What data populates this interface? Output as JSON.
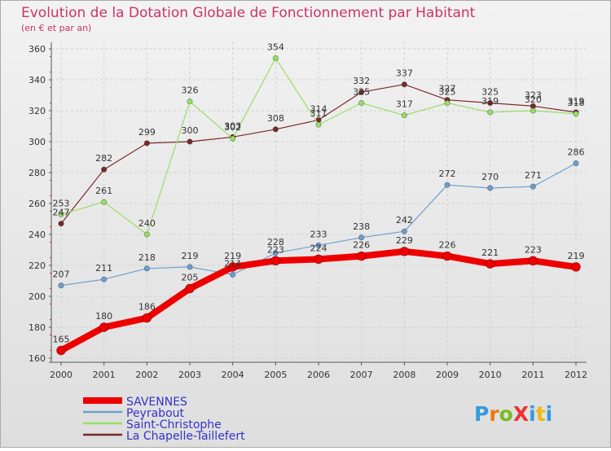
{
  "chart_data": {
    "type": "line",
    "title": "Evolution de la Dotation Globale de Fonctionnement par Habitant",
    "subtitle": "(en € et par an)",
    "xlabel": "",
    "ylabel": "",
    "x": [
      "2000",
      "2001",
      "2002",
      "2003",
      "2004",
      "2005",
      "2006",
      "2007",
      "2008",
      "2009",
      "2010",
      "2011",
      "2012"
    ],
    "ylim": [
      160,
      360
    ],
    "yticks": [
      160,
      180,
      200,
      220,
      240,
      260,
      280,
      300,
      320,
      340,
      360
    ],
    "grid": true,
    "legend_position": "bottom-left",
    "series": [
      {
        "name": "SAVENNES",
        "color": "#ee0000",
        "values": [
          165,
          180,
          186,
          205,
          219,
          223,
          224,
          226,
          229,
          226,
          221,
          223,
          219
        ]
      },
      {
        "name": "Peyrabout",
        "color": "#6e9fcf",
        "values": [
          207,
          211,
          218,
          219,
          214,
          228,
          233,
          238,
          242,
          272,
          270,
          271,
          286
        ]
      },
      {
        "name": "Saint-Christophe",
        "color": "#99dd66",
        "values": [
          253,
          261,
          240,
          326,
          302,
          354,
          311,
          325,
          317,
          325,
          319,
          320,
          318
        ]
      },
      {
        "name": "La Chapelle-Taillefert",
        "color": "#7a2a2a",
        "values": [
          247,
          282,
          299,
          300,
          303,
          308,
          314,
          332,
          337,
          327,
          325,
          323,
          319
        ]
      }
    ]
  },
  "brand": {
    "text": "ProXiti"
  }
}
